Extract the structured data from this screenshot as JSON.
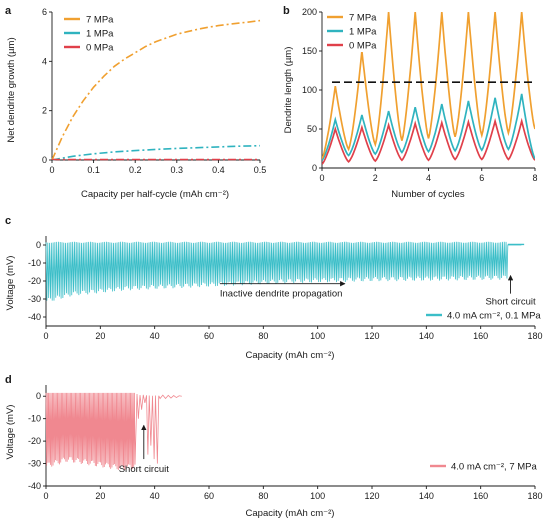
{
  "colors": {
    "p7": "#f0a030",
    "p1": "#2fb3bf",
    "p0": "#e0404a",
    "c_teal": "#3bbec8",
    "d_red": "#f08890",
    "threshold": "#111111"
  },
  "chart_data": [
    {
      "id": "a",
      "panel_label": "a",
      "type": "line",
      "xlabel": "Capacity per half-cycle (mAh cm⁻²)",
      "ylabel": "Net dendrite growth (µm)",
      "xlim": [
        0,
        0.5
      ],
      "ylim": [
        0,
        6
      ],
      "xticks": [
        "0",
        "0.1",
        "0.2",
        "0.3",
        "0.4",
        "0.5"
      ],
      "yticks": [
        "0",
        "2",
        "4",
        "6"
      ],
      "legend_position": "top-left",
      "series": [
        {
          "name": "7 MPa",
          "color_key": "p7",
          "x": [
            0,
            0.025,
            0.05,
            0.075,
            0.1,
            0.125,
            0.15,
            0.175,
            0.2,
            0.225,
            0.25,
            0.275,
            0.3,
            0.325,
            0.35,
            0.375,
            0.4,
            0.425,
            0.45,
            0.475,
            0.5
          ],
          "y": [
            0,
            0.95,
            1.75,
            2.4,
            2.95,
            3.4,
            3.8,
            4.1,
            4.35,
            4.6,
            4.8,
            4.95,
            5.1,
            5.2,
            5.3,
            5.38,
            5.45,
            5.5,
            5.55,
            5.6,
            5.65
          ]
        },
        {
          "name": "1 MPa",
          "color_key": "p1",
          "x": [
            0,
            0.05,
            0.1,
            0.15,
            0.2,
            0.25,
            0.3,
            0.35,
            0.4,
            0.45,
            0.5
          ],
          "y": [
            0,
            0.15,
            0.25,
            0.33,
            0.38,
            0.43,
            0.47,
            0.5,
            0.53,
            0.56,
            0.58
          ]
        },
        {
          "name": "0 MPa",
          "color_key": "p0",
          "x": [
            0,
            0.5
          ],
          "y": [
            0.02,
            0.02
          ]
        }
      ]
    },
    {
      "id": "b",
      "panel_label": "b",
      "type": "line",
      "xlabel": "Number of cycles",
      "ylabel": "Dendrite length (µm)",
      "xlim": [
        0,
        8
      ],
      "ylim": [
        0,
        200
      ],
      "xticks": [
        "0",
        "2",
        "4",
        "6",
        "8"
      ],
      "yticks": [
        "0",
        "50",
        "100",
        "150",
        "200"
      ],
      "legend_position": "top-left",
      "threshold_y": 110,
      "series": [
        {
          "name": "7 MPa",
          "color_key": "p7",
          "cycle_peaks": [
            105,
            150,
            200,
            200,
            200,
            200,
            200,
            200
          ],
          "cycle_troughs": [
            12,
            24,
            30,
            35,
            38,
            40,
            42,
            45,
            50
          ]
        },
        {
          "name": "1 MPa",
          "color_key": "p1",
          "cycle_peaks": [
            62,
            68,
            73,
            78,
            82,
            86,
            90,
            95
          ],
          "cycle_troughs": [
            10,
            16,
            18,
            20,
            21,
            22,
            23,
            24,
            12
          ]
        },
        {
          "name": "0 MPa",
          "color_key": "p0",
          "cycle_peaks": [
            50,
            52,
            55,
            57,
            58,
            59,
            60,
            60
          ],
          "cycle_troughs": [
            5,
            8,
            9,
            10,
            10,
            11,
            11,
            11,
            10
          ]
        }
      ]
    },
    {
      "id": "c",
      "panel_label": "c",
      "type": "line",
      "xlabel": "Capacity (mAh cm⁻²)",
      "ylabel": "Voltage (mV)",
      "xlim": [
        0,
        180
      ],
      "ylim": [
        -45,
        5
      ],
      "xticks": [
        "0",
        "20",
        "40",
        "60",
        "80",
        "100",
        "120",
        "140",
        "160",
        "180"
      ],
      "yticks": [
        "0",
        "-10",
        "-20",
        "-30",
        "-40"
      ],
      "series": [
        {
          "name": "4.0 mA cm⁻², 0.1 MPa",
          "color_key": "c_teal",
          "capacity_end": 170,
          "baseline_top": 1.5,
          "lower_envelope": [
            [
              0,
              -31
            ],
            [
              10,
              -27
            ],
            [
              30,
              -24
            ],
            [
              60,
              -22
            ],
            [
              90,
              -20
            ],
            [
              120,
              -19
            ],
            [
              150,
              -18.5
            ],
            [
              170,
              -18
            ]
          ],
          "short_circuit_at": 170,
          "flat_until": 175
        }
      ],
      "annotations": [
        {
          "text": "Inactive dendrite propagation",
          "arrow_from": 64,
          "arrow_to": 110,
          "y": -21.5
        },
        {
          "text": "Short circuit",
          "x": 171,
          "arrow_from_y": -27,
          "arrow_to_y": -17
        }
      ]
    },
    {
      "id": "d",
      "panel_label": "d",
      "type": "line",
      "xlabel": "Capacity (mAh cm⁻²)",
      "ylabel": "Voltage (mV)",
      "xlim": [
        0,
        180
      ],
      "ylim": [
        -40,
        5
      ],
      "xticks": [
        "0",
        "20",
        "40",
        "60",
        "80",
        "100",
        "120",
        "140",
        "160",
        "180"
      ],
      "yticks": [
        "0",
        "-10",
        "-20",
        "-30",
        "-40"
      ],
      "series": [
        {
          "name": "4.0 mA cm⁻², 7 MPa",
          "color_key": "d_red",
          "capacity_end": 50,
          "baseline_top": 1.5,
          "lower_envelope": [
            [
              0,
              -31
            ],
            [
              8,
              -28
            ],
            [
              18,
              -30
            ],
            [
              28,
              -32
            ],
            [
              33,
              -31
            ]
          ],
          "short_circuit_at": 35
        }
      ],
      "annotations": [
        {
          "text": "Short circuit",
          "x": 36,
          "arrow_from_y": -28,
          "arrow_to_y": -13
        }
      ]
    }
  ]
}
